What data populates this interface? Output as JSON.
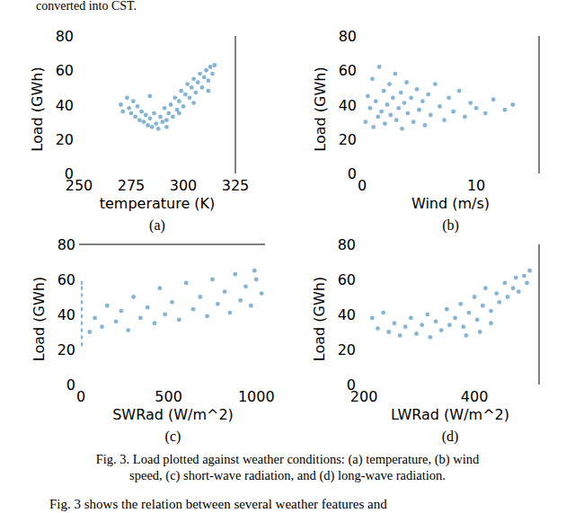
{
  "header": {
    "text": "converted into CST."
  },
  "caption": {
    "lines": [
      "Fig. 3. Load plotted against weather conditions: (a) temperature, (b) wind",
      "speed, (c) short-wave radiation, and (d) long-wave radiation."
    ]
  },
  "body_text": {
    "text": "Fig. 3 shows the relation between several weather features and"
  },
  "chart_data": [
    {
      "type": "scatter",
      "label": "(a)",
      "x_label": "temperature (K)",
      "y_label": "Load (GWh)",
      "color": "#1f77b4",
      "marker": "circle",
      "xlim": [
        250,
        325
      ],
      "ylim": [
        0,
        80
      ],
      "xticks": [
        250,
        275,
        300,
        325
      ],
      "yticks": [
        0,
        20,
        40,
        60,
        80
      ],
      "x": [
        270,
        271,
        273,
        274,
        275,
        276,
        277,
        278,
        279,
        280,
        281,
        282,
        283,
        284,
        285,
        286,
        287,
        288,
        289,
        290,
        291,
        292,
        293,
        294,
        295,
        296,
        297,
        298,
        299,
        300,
        301,
        302,
        303,
        304,
        305,
        306,
        307,
        308,
        309,
        310,
        311,
        312,
        313,
        314,
        315,
        312,
        305,
        298,
        292,
        284
      ],
      "values": [
        40,
        36,
        44,
        38,
        35,
        42,
        33,
        39,
        31,
        36,
        30,
        34,
        28,
        32,
        27,
        35,
        29,
        26,
        33,
        30,
        38,
        31,
        35,
        40,
        33,
        44,
        37,
        42,
        48,
        39,
        46,
        52,
        44,
        50,
        55,
        47,
        53,
        58,
        50,
        56,
        60,
        54,
        62,
        58,
        63,
        48,
        41,
        35,
        27,
        45
      ]
    },
    {
      "type": "scatter",
      "label": "(b)",
      "x_label": "Wind (m/s)",
      "y_label": "Load (GWh)",
      "color": "#1f77b4",
      "marker": "circle",
      "xlim": [
        0,
        15.5
      ],
      "ylim": [
        0,
        80
      ],
      "xticks": [
        0,
        10
      ],
      "yticks": [
        0,
        20,
        40,
        60,
        80
      ],
      "x": [
        0.3,
        0.5,
        0.7,
        0.9,
        1.0,
        1.2,
        1.4,
        1.5,
        1.7,
        1.9,
        2.0,
        2.2,
        2.4,
        2.5,
        2.7,
        2.9,
        3.0,
        3.2,
        3.4,
        3.5,
        3.7,
        3.9,
        4.0,
        4.3,
        4.5,
        4.8,
        5.0,
        5.3,
        5.5,
        5.8,
        6.0,
        6.4,
        6.8,
        7.2,
        7.6,
        8.0,
        8.5,
        9.0,
        9.5,
        10.0,
        10.8,
        11.5,
        12.5,
        13.2
      ],
      "values": [
        30,
        45,
        38,
        55,
        27,
        42,
        33,
        62,
        36,
        48,
        29,
        40,
        52,
        34,
        44,
        58,
        31,
        38,
        47,
        26,
        41,
        53,
        35,
        44,
        30,
        49,
        37,
        42,
        28,
        46,
        34,
        52,
        39,
        31,
        44,
        36,
        48,
        33,
        41,
        38,
        35,
        43,
        37,
        40
      ]
    },
    {
      "type": "scatter",
      "label": "(c)",
      "x_label": "SWRad (W/m^2)",
      "y_label": "Load (GWh)",
      "color": "#1f77b4",
      "marker": "circle",
      "xlim": [
        0,
        1050
      ],
      "ylim": [
        0,
        80
      ],
      "xticks": [
        0,
        500,
        1000
      ],
      "yticks": [
        0,
        20,
        40,
        60,
        80
      ],
      "x": [
        0,
        0,
        0,
        0,
        0,
        0,
        0,
        0,
        0,
        0,
        50,
        80,
        120,
        150,
        200,
        230,
        270,
        300,
        340,
        380,
        420,
        450,
        480,
        520,
        560,
        600,
        640,
        680,
        720,
        750,
        780,
        820,
        850,
        880,
        910,
        940,
        970,
        1000,
        1030,
        990
      ],
      "values": [
        23,
        27,
        31,
        35,
        39,
        43,
        47,
        51,
        55,
        58,
        30,
        38,
        33,
        45,
        36,
        42,
        31,
        50,
        38,
        44,
        35,
        55,
        40,
        47,
        37,
        58,
        43,
        50,
        39,
        60,
        46,
        53,
        41,
        63,
        48,
        56,
        45,
        60,
        52,
        65
      ]
    },
    {
      "type": "scatter",
      "label": "(d)",
      "x_label": "LWRad (W/m^2)",
      "y_label": "Load (GWh)",
      "color": "#1f77b4",
      "marker": "circle",
      "xlim": [
        195,
        517
      ],
      "ylim": [
        0,
        80
      ],
      "xticks": [
        200,
        400
      ],
      "yticks": [
        0,
        20,
        40,
        60,
        80
      ],
      "x": [
        215,
        225,
        235,
        245,
        255,
        265,
        275,
        285,
        295,
        305,
        315,
        320,
        330,
        340,
        350,
        355,
        365,
        375,
        380,
        390,
        400,
        405,
        415,
        420,
        430,
        440,
        445,
        455,
        460,
        470,
        475,
        480,
        490,
        495,
        500,
        410,
        385,
        430
      ],
      "values": [
        38,
        32,
        41,
        30,
        35,
        28,
        33,
        38,
        29,
        34,
        40,
        27,
        36,
        31,
        43,
        34,
        38,
        46,
        33,
        41,
        50,
        37,
        45,
        55,
        42,
        52,
        47,
        58,
        50,
        55,
        61,
        53,
        62,
        58,
        65,
        30,
        28,
        35
      ]
    }
  ]
}
